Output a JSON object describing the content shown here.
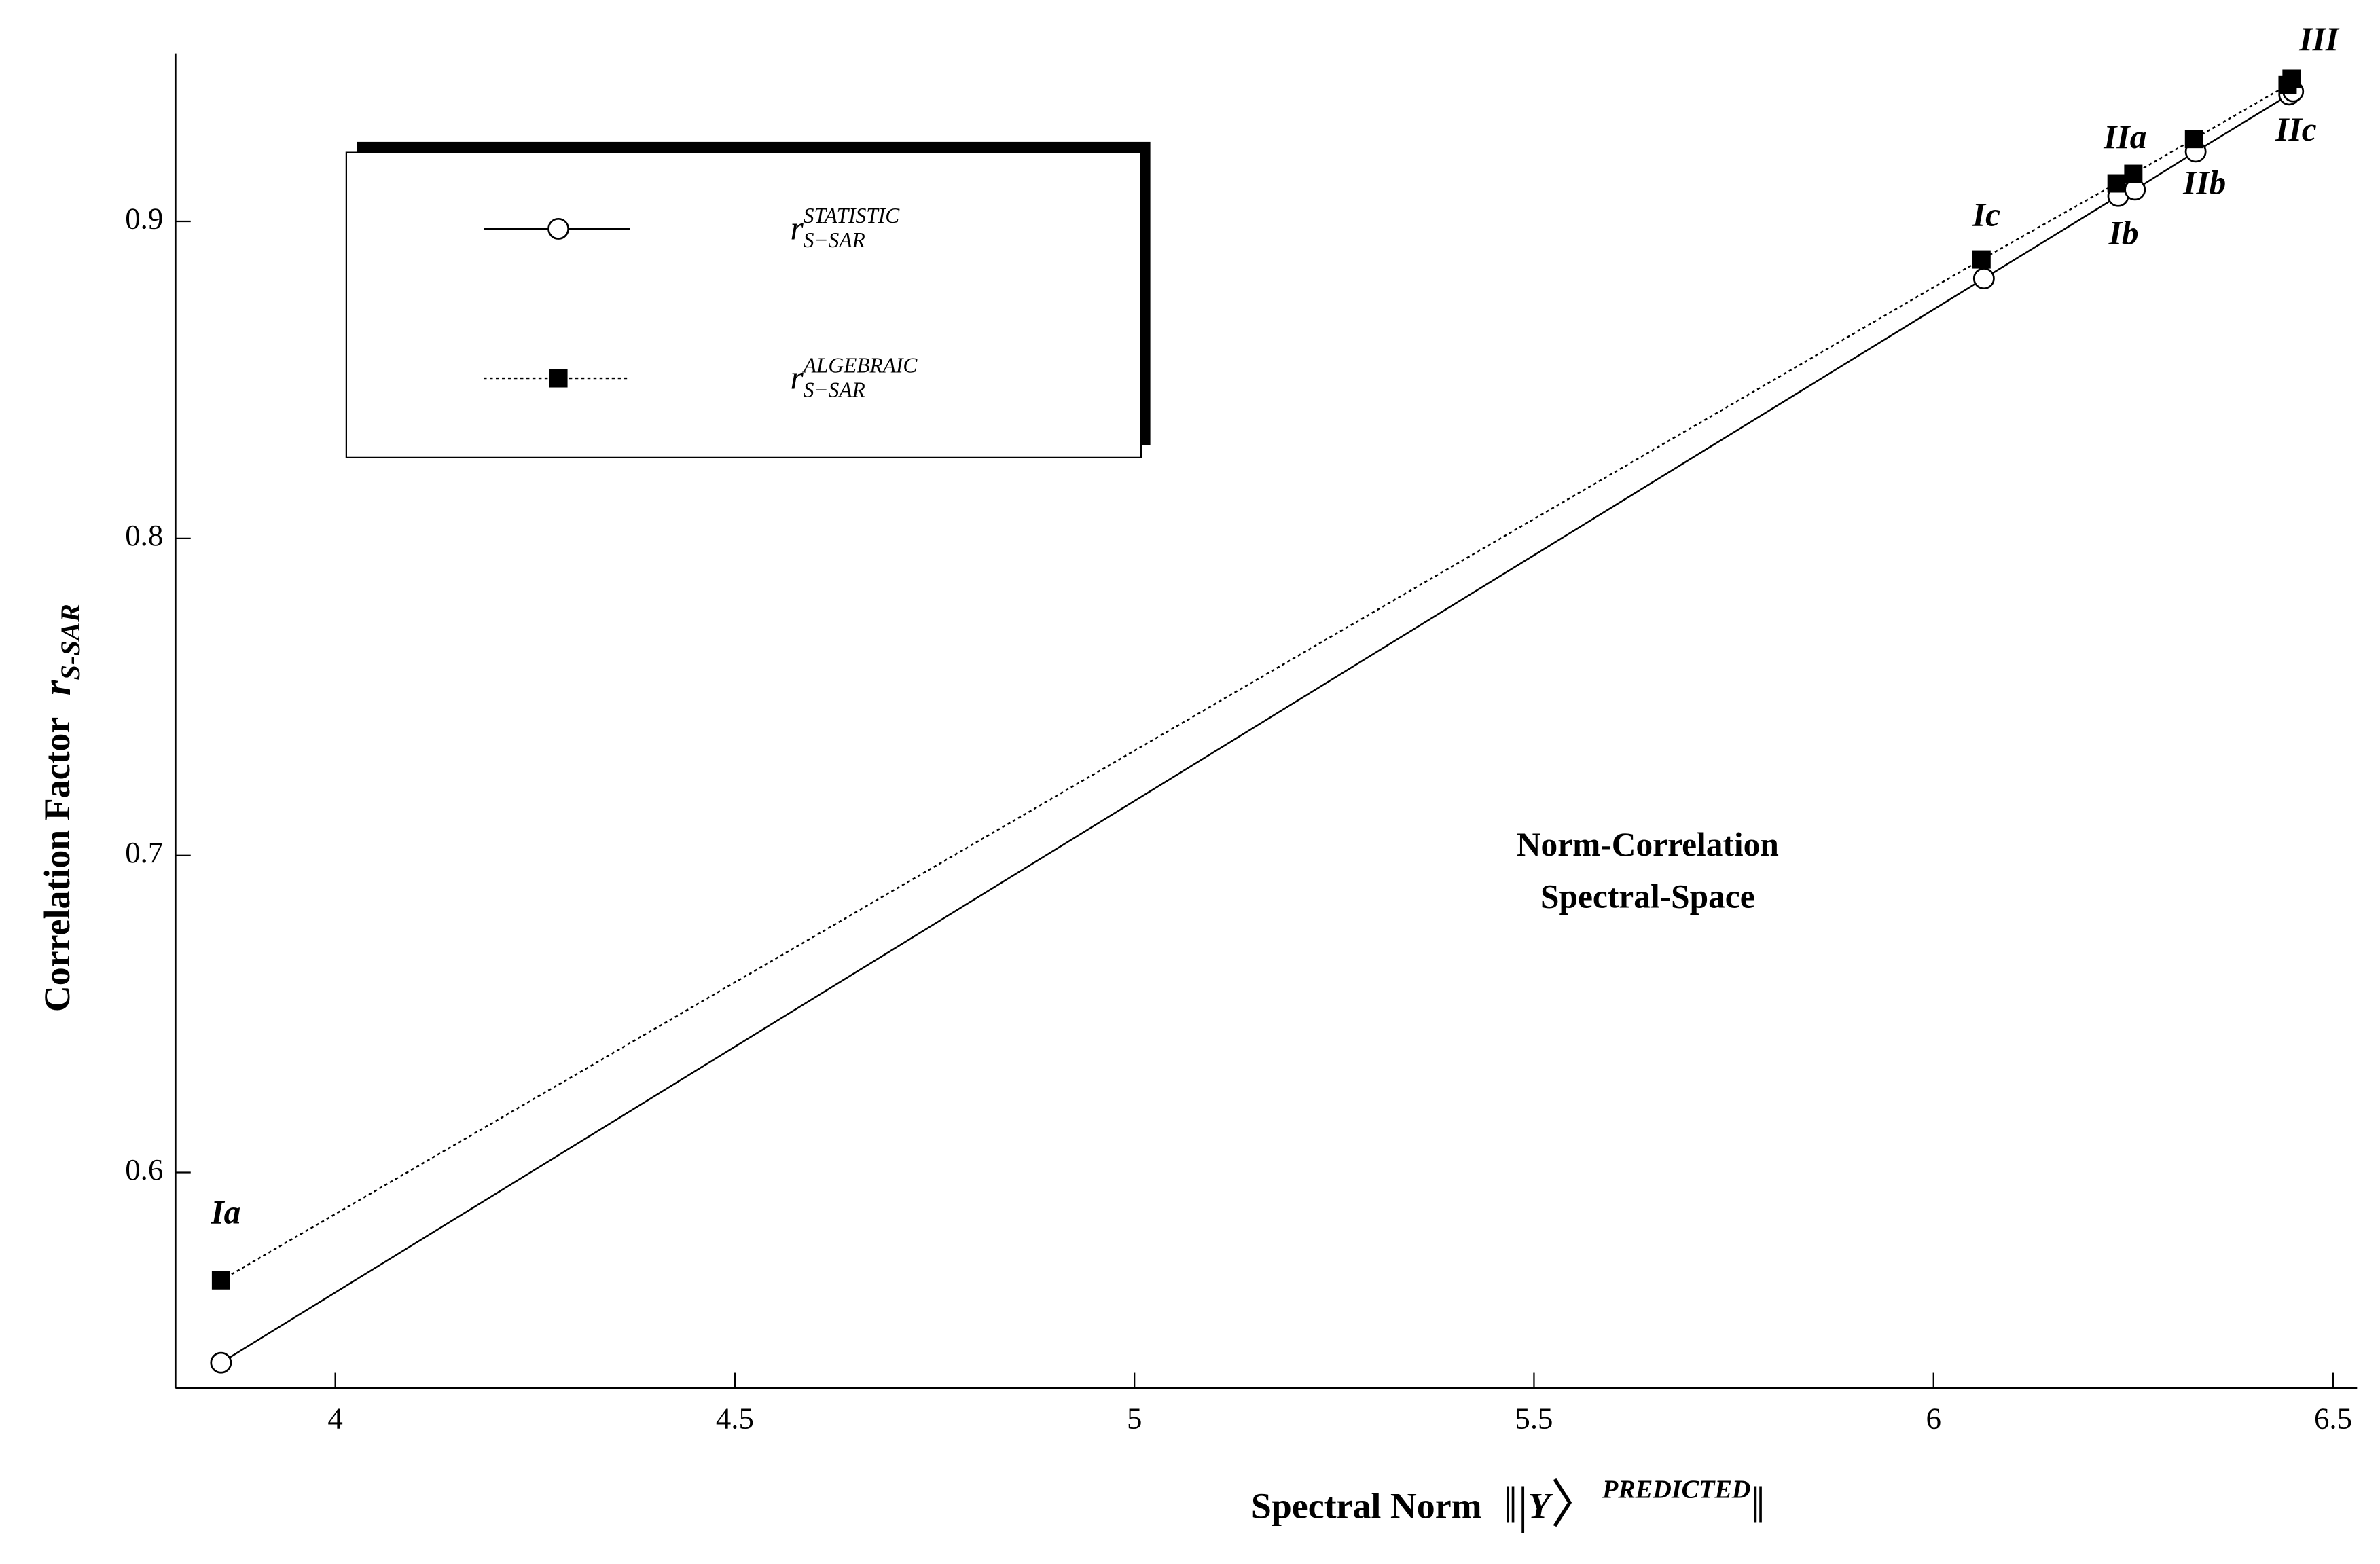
{
  "chart_data": {
    "type": "line",
    "annotation": [
      "Norm-Correlation",
      "Spectral-Space"
    ],
    "x_label": "Spectral Norm",
    "x_label_symbol": "Y",
    "x_label_superscript": "PREDICTED",
    "y_label": "Correlation Factor",
    "y_label_symbol": "r",
    "y_label_subscript": "S-SAR",
    "legend_symbol": "r",
    "legend_subscript": "S−SAR",
    "point_labels": [
      "Ia",
      "Ic",
      "Ib",
      "IIa",
      "IIb",
      "IIc",
      "III"
    ],
    "xlim": [
      3.8,
      6.53
    ],
    "ylim": [
      0.532,
      0.953
    ],
    "xticks": [
      4,
      4.5,
      5,
      5.5,
      6,
      6.5
    ],
    "yticks": [
      0.6,
      0.7,
      0.8,
      0.9
    ],
    "series": [
      {
        "name": "STATISTIC",
        "color": "#000000",
        "dash": false,
        "marker": "circle",
        "x": [
          3.857,
          6.063,
          6.231,
          6.252,
          6.328,
          6.445,
          6.45
        ],
        "values": [
          0.54,
          0.882,
          0.908,
          0.91,
          0.922,
          0.94,
          0.941
        ]
      },
      {
        "name": "ALGEBRAIC",
        "color": "#000000",
        "dash": true,
        "marker": "square",
        "x": [
          3.857,
          6.06,
          6.229,
          6.25,
          6.326,
          6.443,
          6.448
        ],
        "values": [
          0.566,
          0.888,
          0.912,
          0.915,
          0.926,
          0.943,
          0.945
        ]
      }
    ]
  }
}
